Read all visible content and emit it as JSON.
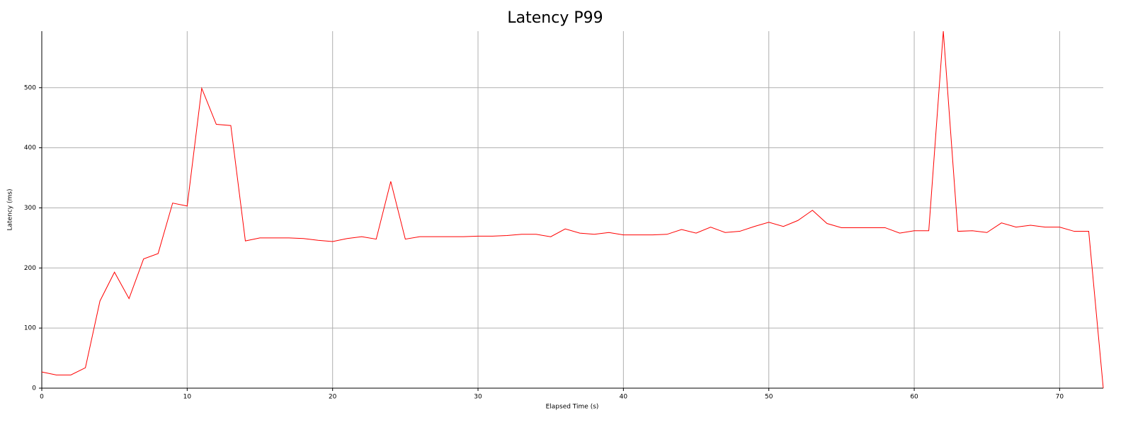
{
  "chart_data": {
    "type": "line",
    "title": "Latency P99",
    "x_label": "Elapsed Time (s)",
    "y_label": "Latency (ms)",
    "x": [
      0,
      1,
      2,
      3,
      4,
      5,
      6,
      7,
      8,
      9,
      10,
      11,
      12,
      13,
      14,
      15,
      16,
      17,
      18,
      19,
      20,
      21,
      22,
      23,
      24,
      25,
      26,
      27,
      28,
      29,
      30,
      31,
      32,
      33,
      34,
      35,
      36,
      37,
      38,
      39,
      40,
      41,
      42,
      43,
      44,
      45,
      46,
      47,
      48,
      49,
      50,
      51,
      52,
      53,
      54,
      55,
      56,
      57,
      58,
      59,
      60,
      61,
      62,
      63,
      64,
      65,
      66,
      67,
      68,
      69,
      70,
      71,
      72,
      73
    ],
    "series": [
      {
        "name": "Latency P99",
        "color": "#ff0000",
        "values": [
          27,
          22,
          22,
          34,
          145,
          193,
          149,
          215,
          224,
          308,
          303,
          499,
          439,
          437,
          245,
          250,
          250,
          250,
          249,
          246,
          244,
          249,
          252,
          248,
          344,
          248,
          252,
          252,
          252,
          252,
          253,
          253,
          254,
          256,
          256,
          252,
          265,
          258,
          256,
          259,
          255,
          255,
          255,
          256,
          264,
          258,
          268,
          259,
          261,
          269,
          276,
          269,
          279,
          296,
          274,
          267,
          267,
          267,
          267,
          258,
          262,
          262,
          594,
          261,
          262,
          259,
          275,
          268,
          271,
          268,
          268,
          261,
          261,
          0
        ]
      }
    ],
    "xlim": [
      0,
      73
    ],
    "ylim": [
      0,
      594
    ],
    "xticks": [
      0,
      10,
      20,
      30,
      40,
      50,
      60,
      70
    ],
    "yticks": [
      0,
      100,
      200,
      300,
      400,
      500
    ],
    "grid": true
  }
}
